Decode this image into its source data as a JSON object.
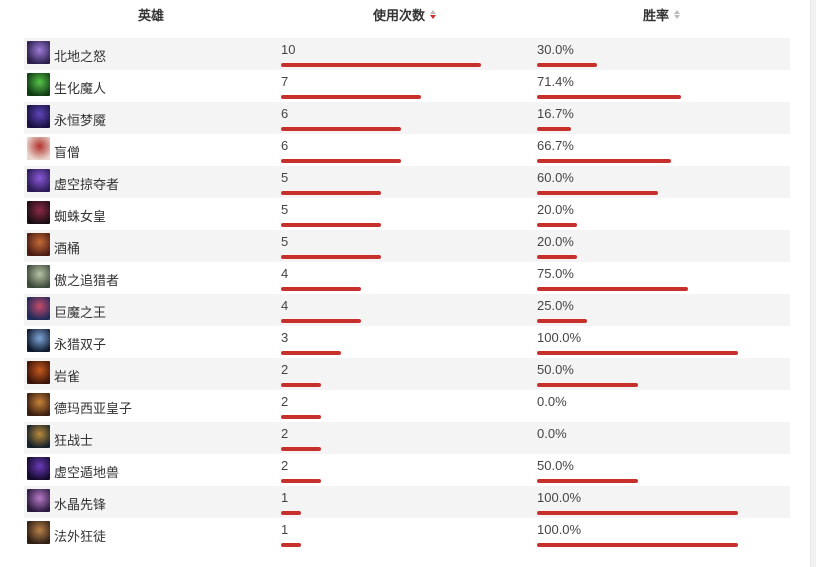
{
  "header": {
    "hero_label": "英雄",
    "uses_label": "使用次数",
    "winrate_label": "胜率"
  },
  "colors": {
    "bar": "#c8302c",
    "sort_active": "#d0312d",
    "sort_inactive": "#bbbbbb"
  },
  "rows": [
    {
      "name": "北地之怒",
      "uses": "10",
      "uses_value": 10,
      "winrate": "30.0%",
      "winrate_value": 30.0,
      "avatar_colors": [
        "#2b1f4a",
        "#9d7bd8"
      ]
    },
    {
      "name": "生化魔人",
      "uses": "7",
      "uses_value": 7,
      "winrate": "71.4%",
      "winrate_value": 71.4,
      "avatar_colors": [
        "#0f3a12",
        "#56c24a"
      ]
    },
    {
      "name": "永恒梦魇",
      "uses": "6",
      "uses_value": 6,
      "winrate": "16.7%",
      "winrate_value": 16.7,
      "avatar_colors": [
        "#1a1140",
        "#5d45b8"
      ]
    },
    {
      "name": "盲僧",
      "uses": "6",
      "uses_value": 6,
      "winrate": "66.7%",
      "winrate_value": 66.7,
      "avatar_colors": [
        "#e9d6cf",
        "#b2322c"
      ]
    },
    {
      "name": "虚空掠夺者",
      "uses": "5",
      "uses_value": 5,
      "winrate": "60.0%",
      "winrate_value": 60.0,
      "avatar_colors": [
        "#2a1a55",
        "#8b5ad8"
      ]
    },
    {
      "name": "蜘蛛女皇",
      "uses": "5",
      "uses_value": 5,
      "winrate": "20.0%",
      "winrate_value": 20.0,
      "avatar_colors": [
        "#1b0d14",
        "#8a2a45"
      ]
    },
    {
      "name": "酒桶",
      "uses": "5",
      "uses_value": 5,
      "winrate": "20.0%",
      "winrate_value": 20.0,
      "avatar_colors": [
        "#4a1c12",
        "#c56a3a"
      ]
    },
    {
      "name": "傲之追猎者",
      "uses": "4",
      "uses_value": 4,
      "winrate": "75.0%",
      "winrate_value": 75.0,
      "avatar_colors": [
        "#3c4a3a",
        "#b9c2a4"
      ]
    },
    {
      "name": "巨魔之王",
      "uses": "4",
      "uses_value": 4,
      "winrate": "25.0%",
      "winrate_value": 25.0,
      "avatar_colors": [
        "#1e2a5a",
        "#c44a6a"
      ]
    },
    {
      "name": "永猎双子",
      "uses": "3",
      "uses_value": 3,
      "winrate": "100.0%",
      "winrate_value": 100.0,
      "avatar_colors": [
        "#0f1a2e",
        "#7fa6d8"
      ]
    },
    {
      "name": "岩雀",
      "uses": "2",
      "uses_value": 2,
      "winrate": "50.0%",
      "winrate_value": 50.0,
      "avatar_colors": [
        "#3a1308",
        "#c45a1e"
      ]
    },
    {
      "name": "德玛西亚皇子",
      "uses": "2",
      "uses_value": 2,
      "winrate": "0.0%",
      "winrate_value": 0.0,
      "avatar_colors": [
        "#3a1e10",
        "#c7823a"
      ]
    },
    {
      "name": "狂战士",
      "uses": "2",
      "uses_value": 2,
      "winrate": "0.0%",
      "winrate_value": 0.0,
      "avatar_colors": [
        "#14202a",
        "#b88a3a"
      ]
    },
    {
      "name": "虚空遁地兽",
      "uses": "2",
      "uses_value": 2,
      "winrate": "50.0%",
      "winrate_value": 50.0,
      "avatar_colors": [
        "#140a2e",
        "#6a3ab8"
      ]
    },
    {
      "name": "水晶先锋",
      "uses": "1",
      "uses_value": 1,
      "winrate": "100.0%",
      "winrate_value": 100.0,
      "avatar_colors": [
        "#2a1a3e",
        "#b87ac8"
      ]
    },
    {
      "name": "法外狂徒",
      "uses": "1",
      "uses_value": 1,
      "winrate": "100.0%",
      "winrate_value": 100.0,
      "avatar_colors": [
        "#2e1e14",
        "#b8824a"
      ]
    }
  ]
}
